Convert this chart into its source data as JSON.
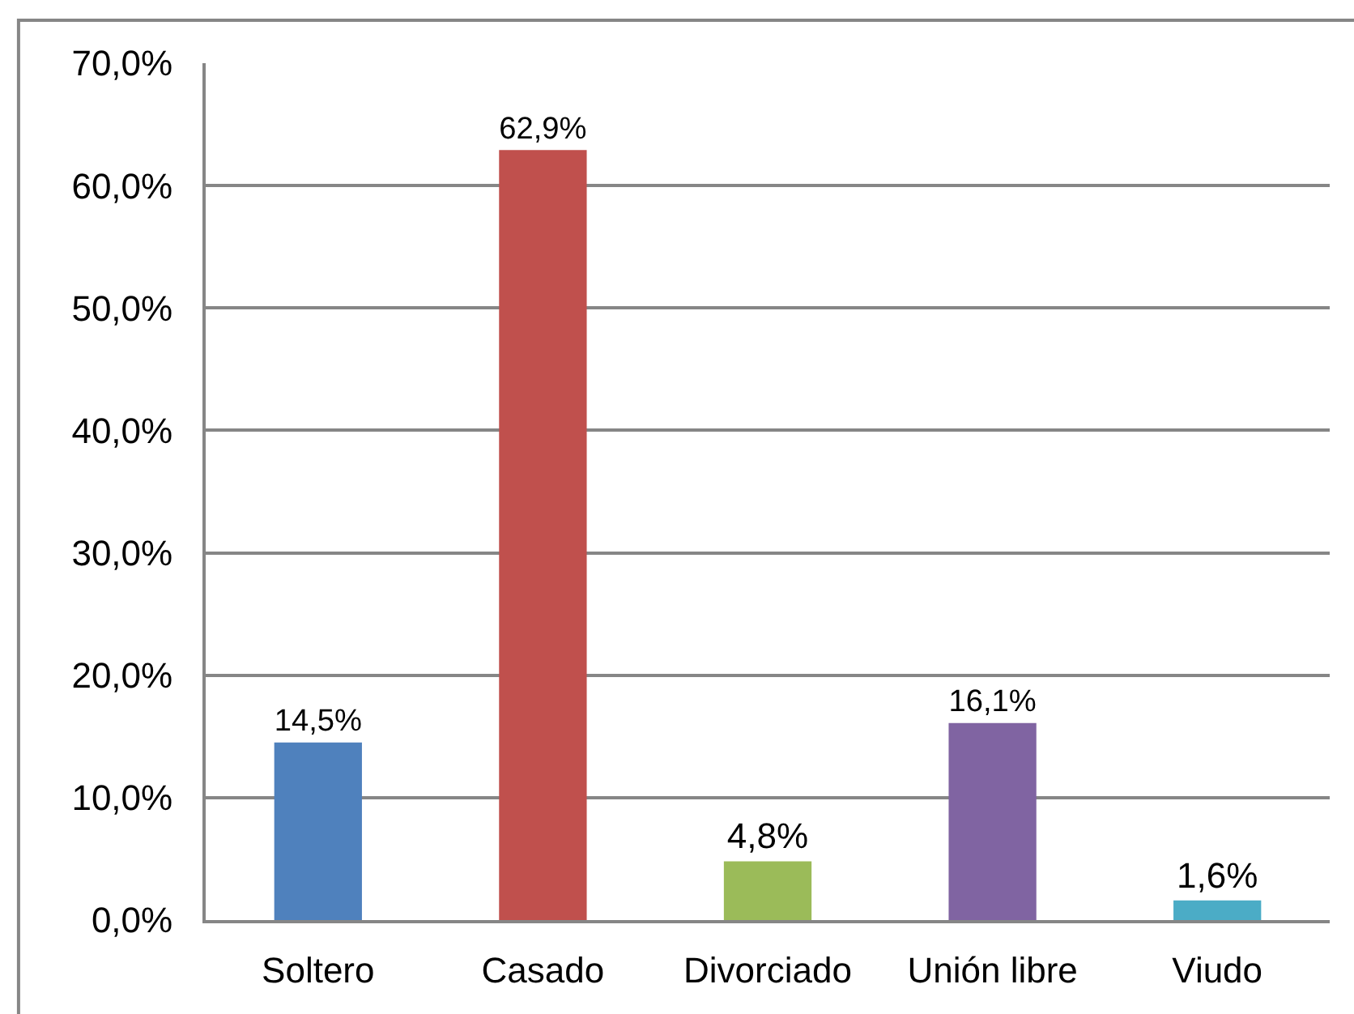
{
  "chart_data": {
    "type": "bar",
    "categories": [
      "Soltero",
      "Casado",
      "Divorciado",
      "Unión libre",
      "Viudo"
    ],
    "values": [
      14.5,
      62.9,
      4.8,
      16.1,
      1.6
    ],
    "colors": [
      "#4f81bd",
      "#c0504d",
      "#9bbb59",
      "#8064a2",
      "#4bacc6"
    ],
    "value_labels": [
      "14,5%",
      "62,9%",
      "4,8%",
      "16,1%",
      "1,6%"
    ],
    "ylim": [
      0,
      70
    ],
    "yticks": [
      {
        "value": 0,
        "label": "0,0%"
      },
      {
        "value": 10,
        "label": "10,0%"
      },
      {
        "value": 20,
        "label": "20,0%"
      },
      {
        "value": 30,
        "label": "30,0%"
      },
      {
        "value": 40,
        "label": "40,0%"
      },
      {
        "value": 50,
        "label": "50,0%"
      },
      {
        "value": 60,
        "label": "60,0%"
      },
      {
        "value": 70,
        "label": "70,0%"
      }
    ],
    "grid": "y"
  }
}
